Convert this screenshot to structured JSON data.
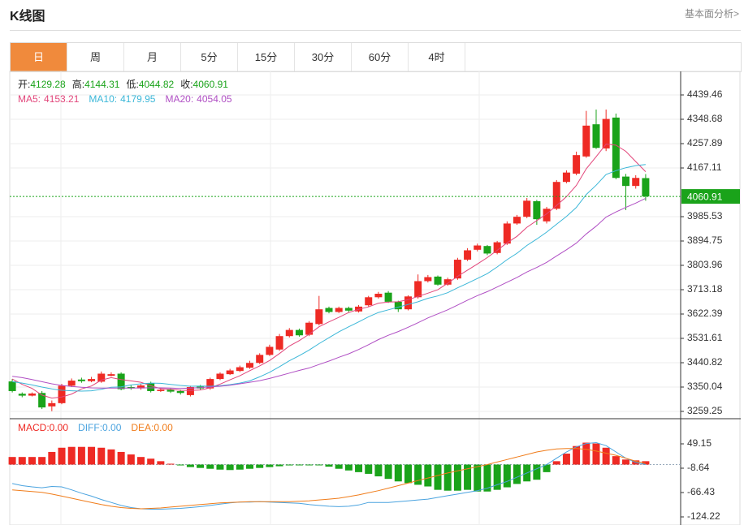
{
  "header": {
    "title": "K线图",
    "link": "基本面分析>"
  },
  "tabs": [
    "日",
    "周",
    "月",
    "5分",
    "15分",
    "30分",
    "60分",
    "4时"
  ],
  "active_tab": 0,
  "chart_data": [
    {
      "type": "candlestick",
      "ohlc_labels": [
        "开:",
        "高:",
        "低:",
        "收:"
      ],
      "up_color": "#ee2a24",
      "down_color": "#1aa31a",
      "open": [
        3371,
        3325,
        3318,
        3328,
        3278,
        3290,
        3355,
        3378,
        3372,
        3370,
        3392,
        3400,
        3350,
        3345,
        3365,
        3335,
        3340,
        3335,
        3320,
        3352,
        3345,
        3380,
        3398,
        3410,
        3422,
        3440,
        3470,
        3490,
        3540,
        3563,
        3545,
        3585,
        3645,
        3630,
        3645,
        3632,
        3655,
        3685,
        3702,
        3668,
        3640,
        3685,
        3745,
        3762,
        3732,
        3755,
        3825,
        3862,
        3876,
        3850,
        3885,
        3960,
        3985,
        4043,
        3968,
        4015,
        4115,
        4146,
        4210,
        4330,
        4240,
        4355,
        4135,
        4100,
        4129.28
      ],
      "high": [
        3380,
        3330,
        3330,
        3335,
        3300,
        3362,
        3382,
        3385,
        3388,
        3408,
        3405,
        3405,
        3356,
        3362,
        3370,
        3345,
        3345,
        3340,
        3355,
        3358,
        3385,
        3405,
        3418,
        3430,
        3448,
        3476,
        3508,
        3548,
        3570,
        3568,
        3596,
        3690,
        3650,
        3650,
        3650,
        3656,
        3690,
        3705,
        3708,
        3672,
        3692,
        3770,
        3768,
        3766,
        3758,
        3832,
        3868,
        3885,
        3880,
        3895,
        3968,
        3992,
        4055,
        4048,
        4022,
        4122,
        4158,
        4228,
        4380,
        4385,
        4385,
        4370,
        4145,
        4140,
        4144.31
      ],
      "low": [
        3330,
        3312,
        3315,
        3268,
        3260,
        3286,
        3350,
        3366,
        3368,
        3366,
        3390,
        3338,
        3340,
        3340,
        3330,
        3332,
        3328,
        3322,
        3315,
        3340,
        3340,
        3376,
        3395,
        3406,
        3418,
        3436,
        3466,
        3485,
        3535,
        3538,
        3540,
        3580,
        3625,
        3626,
        3630,
        3628,
        3650,
        3680,
        3664,
        3630,
        3636,
        3680,
        3740,
        3728,
        3728,
        3750,
        3820,
        3856,
        3842,
        3845,
        3880,
        3955,
        3980,
        3955,
        3960,
        4010,
        4110,
        4140,
        4205,
        4238,
        4230,
        4125,
        4010,
        4090,
        4044.82
      ],
      "close": [
        3335,
        3318,
        3326,
        3274,
        3290,
        3355,
        3374,
        3372,
        3380,
        3400,
        3398,
        3342,
        3345,
        3356,
        3335,
        3340,
        3333,
        3328,
        3350,
        3345,
        3380,
        3400,
        3412,
        3424,
        3440,
        3470,
        3500,
        3540,
        3563,
        3543,
        3590,
        3640,
        3630,
        3645,
        3635,
        3650,
        3685,
        3698,
        3668,
        3640,
        3688,
        3745,
        3760,
        3732,
        3752,
        3825,
        3860,
        3878,
        3848,
        3890,
        3960,
        3985,
        4045,
        3976,
        4015,
        4115,
        4150,
        4215,
        4325,
        4242,
        4350,
        4130,
        4100,
        4130,
        4060.91
      ],
      "series": [
        {
          "name": "MA5:",
          "color": "#e2457a",
          "values": [
            3380,
            3360,
            3345,
            3320,
            3309,
            3313,
            3324,
            3343,
            3354,
            3376,
            3385,
            3378,
            3373,
            3368,
            3355,
            3344,
            3342,
            3338,
            3337,
            3339,
            3347,
            3361,
            3377,
            3392,
            3411,
            3429,
            3449,
            3475,
            3503,
            3523,
            3547,
            3575,
            3593,
            3610,
            3628,
            3640,
            3649,
            3663,
            3667,
            3668,
            3676,
            3688,
            3700,
            3713,
            3737,
            3763,
            3786,
            3809,
            3833,
            3860,
            3888,
            3912,
            3946,
            3971,
            3996,
            4027,
            4060,
            4102,
            4164,
            4209,
            4256,
            4252,
            4229,
            4191,
            4153.21
          ]
        },
        {
          "name": "MA10:",
          "color": "#3bb7d8",
          "values": [
            3370,
            3365,
            3358,
            3350,
            3343,
            3338,
            3336,
            3335,
            3336,
            3342,
            3349,
            3351,
            3358,
            3362,
            3365,
            3364,
            3360,
            3356,
            3353,
            3354,
            3353,
            3355,
            3359,
            3365,
            3373,
            3388,
            3405,
            3426,
            3448,
            3467,
            3488,
            3512,
            3534,
            3556,
            3575,
            3593,
            3612,
            3628,
            3638,
            3648,
            3658,
            3668,
            3681,
            3690,
            3702,
            3720,
            3737,
            3755,
            3773,
            3798,
            3825,
            3849,
            3878,
            3902,
            3928,
            3957,
            3986,
            4020,
            4068,
            4103,
            4143,
            4157,
            4168,
            4176,
            4179.95
          ]
        },
        {
          "name": "MA20:",
          "color": "#b04fc4",
          "values": [
            3390,
            3385,
            3378,
            3370,
            3362,
            3356,
            3352,
            3349,
            3347,
            3346,
            3346,
            3346,
            3346,
            3347,
            3347,
            3347,
            3346,
            3345,
            3346,
            3348,
            3351,
            3353,
            3357,
            3362,
            3368,
            3374,
            3382,
            3392,
            3402,
            3412,
            3421,
            3434,
            3447,
            3461,
            3474,
            3490,
            3508,
            3527,
            3543,
            3557,
            3573,
            3590,
            3608,
            3623,
            3638,
            3656,
            3674,
            3691,
            3706,
            3723,
            3741,
            3759,
            3779,
            3796,
            3815,
            3839,
            3862,
            3887,
            3921,
            3950,
            3984,
            4003,
            4020,
            4036,
            4054.05
          ]
        }
      ],
      "ylim": [
        3232,
        4527.2
      ],
      "yticks": [
        4439.46,
        4348.68,
        4257.89,
        4167.11,
        3985.53,
        3894.75,
        3803.96,
        3713.18,
        3622.39,
        3531.61,
        3440.82,
        3350.04,
        3259.25
      ],
      "grid": true
    },
    {
      "type": "macd",
      "up_color": "#ee2a24",
      "down_color": "#1aa31a",
      "series": [
        {
          "name": "MACD:",
          "legend_value": "0.00",
          "color": "#ee2a24",
          "values": [
            18,
            18,
            18,
            18,
            30,
            40,
            42,
            42,
            42,
            40,
            36,
            30,
            24,
            18,
            14,
            8,
            2,
            -2,
            -6,
            -8,
            -10,
            -12,
            -13,
            -12,
            -10,
            -8,
            -6,
            -4,
            -2,
            -1,
            -1,
            -1,
            -5,
            -10,
            -14,
            -18,
            -22,
            -28,
            -34,
            -40,
            -44,
            -48,
            -52,
            -60,
            -62,
            -62,
            -60,
            -64,
            -64,
            -60,
            -54,
            -46,
            -40,
            -36,
            -18,
            8,
            26,
            44,
            52,
            50,
            40,
            20,
            12,
            10,
            8
          ]
        },
        {
          "name": "DIFF:",
          "legend_value": "0.00",
          "color": "#4aa3df",
          "values": [
            -45,
            -50,
            -53,
            -55,
            -52,
            -53,
            -60,
            -68,
            -75,
            -83,
            -90,
            -97,
            -102,
            -105,
            -106,
            -106,
            -105,
            -104,
            -102,
            -100,
            -97,
            -94,
            -91,
            -89,
            -89,
            -88,
            -89,
            -90,
            -91,
            -92,
            -95,
            -97,
            -99,
            -100,
            -99,
            -96,
            -90,
            -90,
            -90,
            -88,
            -86,
            -84,
            -82,
            -78,
            -74,
            -70,
            -66,
            -62,
            -56,
            -48,
            -40,
            -30,
            -20,
            -10,
            0,
            15,
            30,
            42,
            50,
            52,
            45,
            30,
            15,
            5,
            0
          ]
        },
        {
          "name": "DEA:",
          "legend_value": "0.00",
          "color": "#f07c1a",
          "values": [
            -60,
            -62,
            -64,
            -66,
            -70,
            -75,
            -80,
            -85,
            -90,
            -95,
            -99,
            -102,
            -104,
            -105,
            -104,
            -103,
            -101,
            -99,
            -97,
            -95,
            -93,
            -91,
            -90,
            -89,
            -88,
            -88,
            -88,
            -88,
            -88,
            -87,
            -86,
            -84,
            -82,
            -80,
            -76,
            -72,
            -67,
            -62,
            -56,
            -50,
            -44,
            -38,
            -32,
            -26,
            -20,
            -15,
            -10,
            -5,
            0,
            6,
            12,
            18,
            24,
            30,
            34,
            37,
            38,
            38,
            36,
            32,
            27,
            22,
            15,
            8,
            3
          ]
        }
      ],
      "ylim": [
        -143.5,
        108.9
      ],
      "yticks": [
        49.15,
        -8.64,
        -66.43,
        -124.22
      ]
    }
  ]
}
